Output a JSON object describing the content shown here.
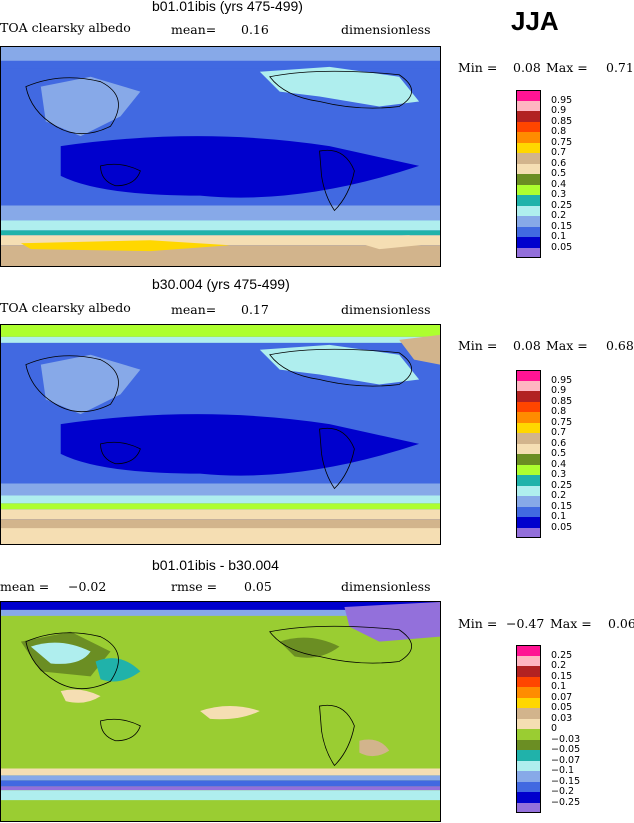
{
  "season": "JJA",
  "panels": [
    {
      "title": "b01.01ibis (yrs 475-499)",
      "left_label": "TOA clearsky albedo",
      "mid_label": "mean=",
      "mid_value": "0.16",
      "right_label": "dimensionless",
      "min_label": "Min =",
      "min_value": "0.08",
      "max_label": "Max =",
      "max_value": "0.71",
      "legend": [
        "0.95",
        "0.9",
        "0.85",
        "0.8",
        "0.75",
        "0.7",
        "0.6",
        "0.5",
        "0.4",
        "0.3",
        "0.25",
        "0.2",
        "0.15",
        "0.1",
        "0.05"
      ],
      "legend_colors": [
        "#ff1493",
        "#ffb6c1",
        "#b22222",
        "#ff4500",
        "#ff8c00",
        "#ffd700",
        "#d2b48c",
        "#f5deb3",
        "#6b8e23",
        "#adff2f",
        "#20b2aa",
        "#afeeee",
        "#87a9e8",
        "#4169e1",
        "#0000cd",
        "#9370db"
      ]
    },
    {
      "title": "b30.004 (yrs 475-499)",
      "left_label": "TOA clearsky albedo",
      "mid_label": "mean=",
      "mid_value": "0.17",
      "right_label": "dimensionless",
      "min_label": "Min =",
      "min_value": "0.08",
      "max_label": "Max =",
      "max_value": "0.68",
      "legend": [
        "0.95",
        "0.9",
        "0.85",
        "0.8",
        "0.75",
        "0.7",
        "0.6",
        "0.5",
        "0.4",
        "0.3",
        "0.25",
        "0.2",
        "0.15",
        "0.1",
        "0.05"
      ],
      "legend_colors": [
        "#ff1493",
        "#ffb6c1",
        "#b22222",
        "#ff4500",
        "#ff8c00",
        "#ffd700",
        "#d2b48c",
        "#f5deb3",
        "#6b8e23",
        "#adff2f",
        "#20b2aa",
        "#afeeee",
        "#87a9e8",
        "#4169e1",
        "#0000cd",
        "#9370db"
      ]
    },
    {
      "title": "b01.01ibis - b30.004",
      "left_label": "mean =",
      "left_value": "−0.02",
      "mid_label": "rmse =",
      "mid_value": "0.05",
      "right_label": "dimensionless",
      "min_label": "Min =",
      "min_value": "−0.47",
      "max_label": "Max =",
      "max_value": "0.06",
      "legend": [
        "0.25",
        "0.2",
        "0.15",
        "0.1",
        "0.07",
        "0.05",
        "0.03",
        "0",
        "−0.03",
        "−0.05",
        "−0.07",
        "−0.1",
        "−0.15",
        "−0.2",
        "−0.25"
      ],
      "legend_colors": [
        "#ff1493",
        "#ffb6c1",
        "#b22222",
        "#ff4500",
        "#ff8c00",
        "#ffd700",
        "#d2b48c",
        "#f5deb3",
        "#9acd32",
        "#6b8e23",
        "#20b2aa",
        "#afeeee",
        "#87a9e8",
        "#4169e1",
        "#0000cd",
        "#9370db"
      ]
    }
  ]
}
